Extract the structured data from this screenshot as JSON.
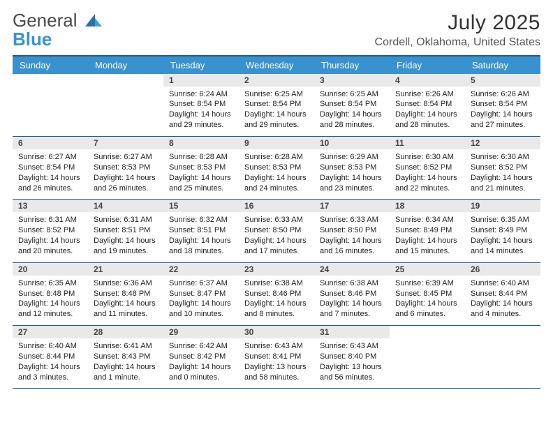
{
  "brand": {
    "text1": "General",
    "text2": "Blue",
    "text1_color": "#555555",
    "text2_color": "#3892d0",
    "icon_color": "#2f6fa8"
  },
  "header": {
    "title": "July 2025",
    "subtitle": "Cordell, Oklahoma, United States",
    "title_fontsize": 30,
    "subtitle_fontsize": 16
  },
  "style": {
    "header_bg": "#3892d0",
    "header_text": "#ffffff",
    "border_color": "#235a8b",
    "daynum_bg": "#e9e9e9",
    "body_fontsize": 11
  },
  "calendar": {
    "type": "calendar-grid",
    "day_headers": [
      "Sunday",
      "Monday",
      "Tuesday",
      "Wednesday",
      "Thursday",
      "Friday",
      "Saturday"
    ],
    "weeks": [
      [
        null,
        null,
        {
          "n": "1",
          "sunrise": "Sunrise: 6:24 AM",
          "sunset": "Sunset: 8:54 PM",
          "dl1": "Daylight: 14 hours",
          "dl2": "and 29 minutes."
        },
        {
          "n": "2",
          "sunrise": "Sunrise: 6:25 AM",
          "sunset": "Sunset: 8:54 PM",
          "dl1": "Daylight: 14 hours",
          "dl2": "and 29 minutes."
        },
        {
          "n": "3",
          "sunrise": "Sunrise: 6:25 AM",
          "sunset": "Sunset: 8:54 PM",
          "dl1": "Daylight: 14 hours",
          "dl2": "and 28 minutes."
        },
        {
          "n": "4",
          "sunrise": "Sunrise: 6:26 AM",
          "sunset": "Sunset: 8:54 PM",
          "dl1": "Daylight: 14 hours",
          "dl2": "and 28 minutes."
        },
        {
          "n": "5",
          "sunrise": "Sunrise: 6:26 AM",
          "sunset": "Sunset: 8:54 PM",
          "dl1": "Daylight: 14 hours",
          "dl2": "and 27 minutes."
        }
      ],
      [
        {
          "n": "6",
          "sunrise": "Sunrise: 6:27 AM",
          "sunset": "Sunset: 8:54 PM",
          "dl1": "Daylight: 14 hours",
          "dl2": "and 26 minutes."
        },
        {
          "n": "7",
          "sunrise": "Sunrise: 6:27 AM",
          "sunset": "Sunset: 8:53 PM",
          "dl1": "Daylight: 14 hours",
          "dl2": "and 26 minutes."
        },
        {
          "n": "8",
          "sunrise": "Sunrise: 6:28 AM",
          "sunset": "Sunset: 8:53 PM",
          "dl1": "Daylight: 14 hours",
          "dl2": "and 25 minutes."
        },
        {
          "n": "9",
          "sunrise": "Sunrise: 6:28 AM",
          "sunset": "Sunset: 8:53 PM",
          "dl1": "Daylight: 14 hours",
          "dl2": "and 24 minutes."
        },
        {
          "n": "10",
          "sunrise": "Sunrise: 6:29 AM",
          "sunset": "Sunset: 8:53 PM",
          "dl1": "Daylight: 14 hours",
          "dl2": "and 23 minutes."
        },
        {
          "n": "11",
          "sunrise": "Sunrise: 6:30 AM",
          "sunset": "Sunset: 8:52 PM",
          "dl1": "Daylight: 14 hours",
          "dl2": "and 22 minutes."
        },
        {
          "n": "12",
          "sunrise": "Sunrise: 6:30 AM",
          "sunset": "Sunset: 8:52 PM",
          "dl1": "Daylight: 14 hours",
          "dl2": "and 21 minutes."
        }
      ],
      [
        {
          "n": "13",
          "sunrise": "Sunrise: 6:31 AM",
          "sunset": "Sunset: 8:52 PM",
          "dl1": "Daylight: 14 hours",
          "dl2": "and 20 minutes."
        },
        {
          "n": "14",
          "sunrise": "Sunrise: 6:31 AM",
          "sunset": "Sunset: 8:51 PM",
          "dl1": "Daylight: 14 hours",
          "dl2": "and 19 minutes."
        },
        {
          "n": "15",
          "sunrise": "Sunrise: 6:32 AM",
          "sunset": "Sunset: 8:51 PM",
          "dl1": "Daylight: 14 hours",
          "dl2": "and 18 minutes."
        },
        {
          "n": "16",
          "sunrise": "Sunrise: 6:33 AM",
          "sunset": "Sunset: 8:50 PM",
          "dl1": "Daylight: 14 hours",
          "dl2": "and 17 minutes."
        },
        {
          "n": "17",
          "sunrise": "Sunrise: 6:33 AM",
          "sunset": "Sunset: 8:50 PM",
          "dl1": "Daylight: 14 hours",
          "dl2": "and 16 minutes."
        },
        {
          "n": "18",
          "sunrise": "Sunrise: 6:34 AM",
          "sunset": "Sunset: 8:49 PM",
          "dl1": "Daylight: 14 hours",
          "dl2": "and 15 minutes."
        },
        {
          "n": "19",
          "sunrise": "Sunrise: 6:35 AM",
          "sunset": "Sunset: 8:49 PM",
          "dl1": "Daylight: 14 hours",
          "dl2": "and 14 minutes."
        }
      ],
      [
        {
          "n": "20",
          "sunrise": "Sunrise: 6:35 AM",
          "sunset": "Sunset: 8:48 PM",
          "dl1": "Daylight: 14 hours",
          "dl2": "and 12 minutes."
        },
        {
          "n": "21",
          "sunrise": "Sunrise: 6:36 AM",
          "sunset": "Sunset: 8:48 PM",
          "dl1": "Daylight: 14 hours",
          "dl2": "and 11 minutes."
        },
        {
          "n": "22",
          "sunrise": "Sunrise: 6:37 AM",
          "sunset": "Sunset: 8:47 PM",
          "dl1": "Daylight: 14 hours",
          "dl2": "and 10 minutes."
        },
        {
          "n": "23",
          "sunrise": "Sunrise: 6:38 AM",
          "sunset": "Sunset: 8:46 PM",
          "dl1": "Daylight: 14 hours",
          "dl2": "and 8 minutes."
        },
        {
          "n": "24",
          "sunrise": "Sunrise: 6:38 AM",
          "sunset": "Sunset: 8:46 PM",
          "dl1": "Daylight: 14 hours",
          "dl2": "and 7 minutes."
        },
        {
          "n": "25",
          "sunrise": "Sunrise: 6:39 AM",
          "sunset": "Sunset: 8:45 PM",
          "dl1": "Daylight: 14 hours",
          "dl2": "and 6 minutes."
        },
        {
          "n": "26",
          "sunrise": "Sunrise: 6:40 AM",
          "sunset": "Sunset: 8:44 PM",
          "dl1": "Daylight: 14 hours",
          "dl2": "and 4 minutes."
        }
      ],
      [
        {
          "n": "27",
          "sunrise": "Sunrise: 6:40 AM",
          "sunset": "Sunset: 8:44 PM",
          "dl1": "Daylight: 14 hours",
          "dl2": "and 3 minutes."
        },
        {
          "n": "28",
          "sunrise": "Sunrise: 6:41 AM",
          "sunset": "Sunset: 8:43 PM",
          "dl1": "Daylight: 14 hours",
          "dl2": "and 1 minute."
        },
        {
          "n": "29",
          "sunrise": "Sunrise: 6:42 AM",
          "sunset": "Sunset: 8:42 PM",
          "dl1": "Daylight: 14 hours",
          "dl2": "and 0 minutes."
        },
        {
          "n": "30",
          "sunrise": "Sunrise: 6:43 AM",
          "sunset": "Sunset: 8:41 PM",
          "dl1": "Daylight: 13 hours",
          "dl2": "and 58 minutes."
        },
        {
          "n": "31",
          "sunrise": "Sunrise: 6:43 AM",
          "sunset": "Sunset: 8:40 PM",
          "dl1": "Daylight: 13 hours",
          "dl2": "and 56 minutes."
        },
        null,
        null
      ]
    ]
  }
}
